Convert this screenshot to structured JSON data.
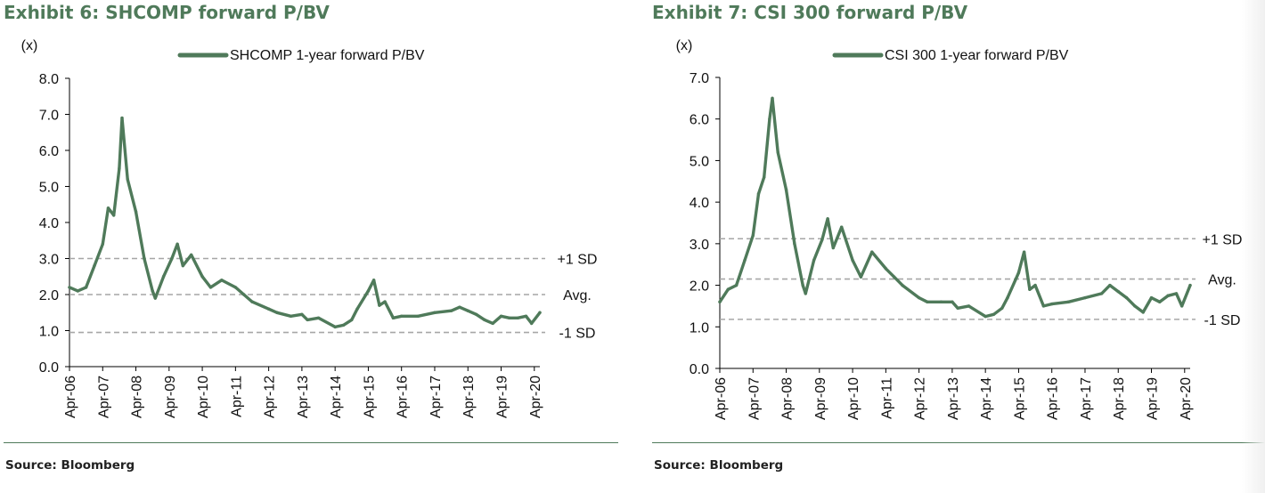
{
  "exhibits": [
    {
      "title": "Exhibit 6: SHCOMP forward P/BV",
      "source": "Source: Bloomberg"
    },
    {
      "title": "Exhibit 7: CSI 300 forward P/BV",
      "source": "Source: Bloomberg"
    }
  ],
  "chart_data": [
    {
      "type": "line",
      "title": "",
      "ylabel": "(x)",
      "ylim": [
        0,
        8
      ],
      "yticks": [
        "0.0",
        "1.0",
        "2.0",
        "3.0",
        "4.0",
        "5.0",
        "6.0",
        "7.0",
        "8.0"
      ],
      "xticks": [
        "Apr-06",
        "Apr-07",
        "Apr-08",
        "Apr-09",
        "Apr-10",
        "Apr-11",
        "Apr-12",
        "Apr-13",
        "Apr-14",
        "Apr-15",
        "Apr-16",
        "Apr-17",
        "Apr-18",
        "Apr-19",
        "Apr-20"
      ],
      "grid": false,
      "legend_position": "top",
      "series": [
        {
          "name": "SHCOMP 1-year forward P/BV",
          "color": "#4f7a5a",
          "x": [
            "2006-04",
            "2006-07",
            "2006-10",
            "2007-01",
            "2007-04",
            "2007-06",
            "2007-08",
            "2007-10",
            "2007-11",
            "2008-01",
            "2008-04",
            "2008-07",
            "2008-10",
            "2008-11",
            "2009-02",
            "2009-05",
            "2009-07",
            "2009-09",
            "2009-12",
            "2010-04",
            "2010-07",
            "2010-11",
            "2011-04",
            "2011-07",
            "2011-10",
            "2012-04",
            "2012-07",
            "2012-12",
            "2013-04",
            "2013-06",
            "2013-10",
            "2014-04",
            "2014-07",
            "2014-10",
            "2014-12",
            "2015-04",
            "2015-06",
            "2015-08",
            "2015-10",
            "2016-01",
            "2016-04",
            "2016-10",
            "2017-04",
            "2017-10",
            "2018-01",
            "2018-04",
            "2018-07",
            "2018-10",
            "2019-01",
            "2019-04",
            "2019-07",
            "2019-10",
            "2020-01",
            "2020-03",
            "2020-06"
          ],
          "values": [
            2.2,
            2.1,
            2.2,
            2.8,
            3.4,
            4.4,
            4.2,
            5.5,
            6.9,
            5.2,
            4.3,
            3.0,
            2.1,
            1.9,
            2.5,
            3.0,
            3.4,
            2.8,
            3.1,
            2.5,
            2.2,
            2.4,
            2.2,
            2.0,
            1.8,
            1.6,
            1.5,
            1.4,
            1.45,
            1.3,
            1.35,
            1.1,
            1.15,
            1.3,
            1.6,
            2.1,
            2.4,
            1.7,
            1.8,
            1.35,
            1.4,
            1.4,
            1.5,
            1.55,
            1.65,
            1.55,
            1.45,
            1.3,
            1.2,
            1.4,
            1.35,
            1.35,
            1.4,
            1.2,
            1.5
          ]
        }
      ],
      "reference_lines": [
        {
          "label": "+1 SD",
          "value": 3.0
        },
        {
          "label": "Avg.",
          "value": 2.0
        },
        {
          "label": "-1 SD",
          "value": 0.95
        }
      ]
    },
    {
      "type": "line",
      "title": "",
      "ylabel": "(x)",
      "ylim": [
        0,
        7
      ],
      "yticks": [
        "0.0",
        "1.0",
        "2.0",
        "3.0",
        "4.0",
        "5.0",
        "6.0",
        "7.0"
      ],
      "xticks": [
        "Apr-06",
        "Apr-07",
        "Apr-08",
        "Apr-09",
        "Apr-10",
        "Apr-11",
        "Apr-12",
        "Apr-13",
        "Apr-14",
        "Apr-15",
        "Apr-16",
        "Apr-17",
        "Apr-18",
        "Apr-19",
        "Apr-20"
      ],
      "grid": false,
      "legend_position": "top",
      "series": [
        {
          "name": "CSI 300 1-year forward P/BV",
          "color": "#4f7a5a",
          "x": [
            "2006-04",
            "2006-07",
            "2006-10",
            "2007-01",
            "2007-04",
            "2007-06",
            "2007-08",
            "2007-10",
            "2007-11",
            "2008-01",
            "2008-04",
            "2008-07",
            "2008-10",
            "2008-11",
            "2009-02",
            "2009-05",
            "2009-07",
            "2009-09",
            "2009-12",
            "2010-04",
            "2010-07",
            "2010-11",
            "2011-04",
            "2011-07",
            "2011-10",
            "2012-04",
            "2012-07",
            "2012-12",
            "2013-04",
            "2013-06",
            "2013-10",
            "2014-04",
            "2014-07",
            "2014-10",
            "2014-12",
            "2015-04",
            "2015-06",
            "2015-08",
            "2015-10",
            "2016-01",
            "2016-04",
            "2016-10",
            "2017-04",
            "2017-10",
            "2018-01",
            "2018-04",
            "2018-07",
            "2018-10",
            "2019-01",
            "2019-04",
            "2019-07",
            "2019-10",
            "2020-01",
            "2020-03",
            "2020-06"
          ],
          "values": [
            1.6,
            1.9,
            2.0,
            2.6,
            3.2,
            4.2,
            4.6,
            6.0,
            6.5,
            5.2,
            4.3,
            3.0,
            2.0,
            1.8,
            2.6,
            3.1,
            3.6,
            2.9,
            3.4,
            2.6,
            2.2,
            2.8,
            2.4,
            2.2,
            2.0,
            1.7,
            1.6,
            1.6,
            1.6,
            1.45,
            1.5,
            1.25,
            1.3,
            1.45,
            1.7,
            2.3,
            2.8,
            1.9,
            2.0,
            1.5,
            1.55,
            1.6,
            1.7,
            1.8,
            2.0,
            1.85,
            1.7,
            1.5,
            1.35,
            1.7,
            1.6,
            1.75,
            1.8,
            1.5,
            2.0
          ]
        }
      ],
      "reference_lines": [
        {
          "label": "+1 SD",
          "value": 3.12
        },
        {
          "label": "Avg.",
          "value": 2.15
        },
        {
          "label": "-1 SD",
          "value": 1.18
        }
      ]
    }
  ]
}
